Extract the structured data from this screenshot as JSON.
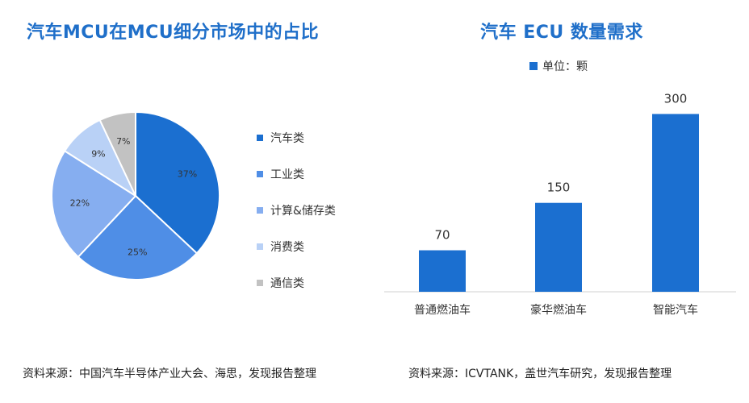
{
  "left": {
    "title": "汽车MCU在MCU细分市场中的占比",
    "source": "资料来源：中国汽车半导体产业大会、海思，发现报告整理"
  },
  "right": {
    "title": "汽车 ECU 数量需求",
    "unit_label": "单位：颗",
    "source": "资料来源：ICVTANK，盖世汽车研究，发现报告整理"
  },
  "chart_data": [
    {
      "type": "pie",
      "title": "汽车MCU在MCU细分市场中的占比",
      "categories": [
        "汽车类",
        "工业类",
        "计算&储存类",
        "消费类",
        "通信类"
      ],
      "values": [
        37,
        25,
        22,
        9,
        7
      ],
      "labels": [
        "37%",
        "25%",
        "22%",
        "9%",
        "7%"
      ],
      "colors": [
        "#1b6fd0",
        "#4f8ee6",
        "#86aef0",
        "#b9d1f6",
        "#c2c2c2"
      ],
      "legend_position": "right"
    },
    {
      "type": "bar",
      "title": "汽车 ECU 数量需求",
      "categories": [
        "普通燃油车",
        "豪华燃油车",
        "智能汽车"
      ],
      "series": [
        {
          "name": "单位：颗",
          "values": [
            70,
            150,
            300
          ]
        }
      ],
      "data_labels": [
        "70",
        "150",
        "300"
      ],
      "ylim": [
        0,
        340
      ],
      "grid": false,
      "color": "#1b6fd0"
    }
  ]
}
